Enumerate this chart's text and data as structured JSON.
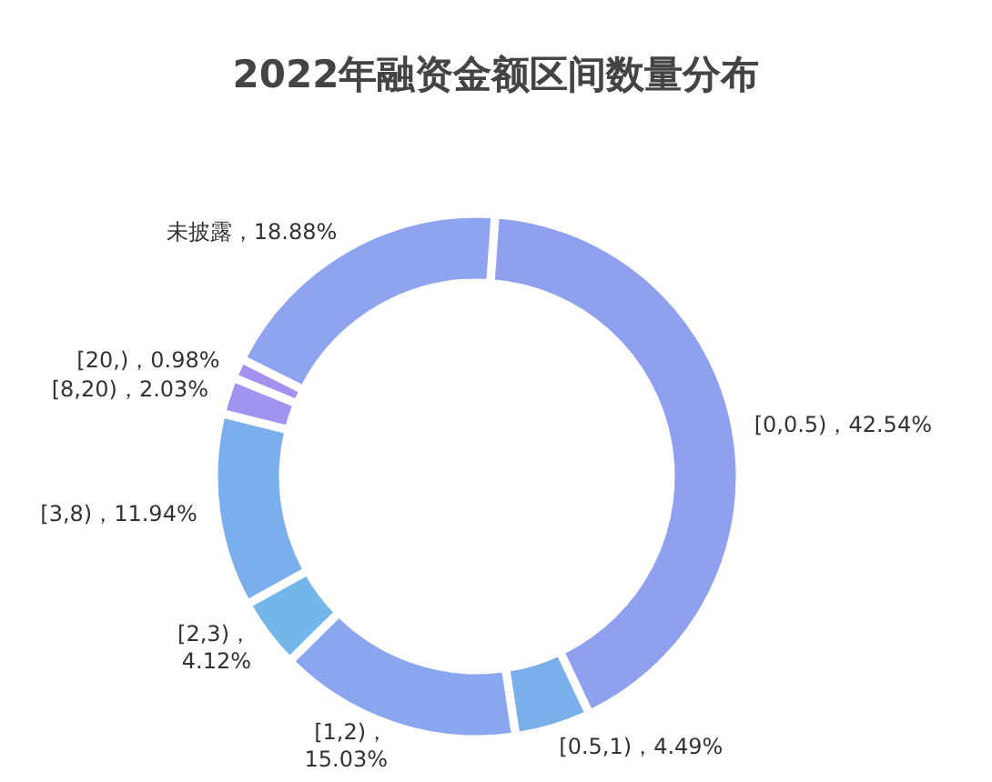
{
  "chart_data": {
    "type": "donut",
    "title": "2022年融资金额区间数量分布",
    "categories": [
      "[0,0.5)",
      "[0.5,1)",
      "[1,2)",
      "[2,3)",
      "[3,8)",
      "[8,20)",
      "[20,)",
      "未披露"
    ],
    "values": [
      42.54,
      4.49,
      15.03,
      4.12,
      11.94,
      2.03,
      0.98,
      18.88
    ],
    "value_labels": [
      "，42.54%",
      "，4.49%",
      "，15.03%",
      "，4.12%",
      "，11.94%",
      "，2.03%",
      "，0.98%",
      "，18.88%"
    ],
    "colors": [
      "#8fa0ee",
      "#79b0ec",
      "#8aa6ee",
      "#72b6ea",
      "#7aaeec",
      "#9f94ef",
      "#a58ff0",
      "#8ea4ee"
    ]
  }
}
